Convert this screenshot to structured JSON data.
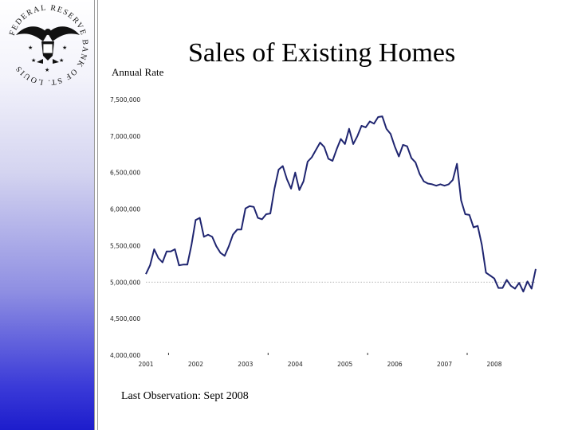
{
  "seal": {
    "ring_text": "FEDERAL RESERVE BANK OF ST. LOUIS",
    "icon": "eagle-seal-icon"
  },
  "header": {
    "title": "Sales of Existing Homes",
    "subtitle": "Annual Rate"
  },
  "footer": {
    "note": "Last Observation: Sept 2008"
  },
  "colors": {
    "line": "#1f2570",
    "band_top": "#ffffff",
    "band_bottom": "#1d1dcc"
  },
  "chart_data": {
    "type": "line",
    "title": "Sales of Existing Homes",
    "ylabel": "Annual Rate",
    "xlabel": "",
    "ylim": [
      4000000,
      7500000
    ],
    "xlim": [
      2001.0,
      2008.833
    ],
    "yticks": [
      4000000,
      4500000,
      5000000,
      5500000,
      6000000,
      6500000,
      7000000,
      7500000
    ],
    "ytick_labels": [
      "4,000,000",
      "4,500,000",
      "5,000,000",
      "5,500,000",
      "6,000,000",
      "6,500,000",
      "7,000,000",
      "7,500,000"
    ],
    "xticks": [
      2001,
      2002,
      2003,
      2004,
      2005,
      2006,
      2007,
      2008
    ],
    "xtick_labels": [
      "2001",
      "2002",
      "2003",
      "2004",
      "2005",
      "2006",
      "2007",
      "2008"
    ],
    "reference_line": 5000000,
    "series": [
      {
        "name": "Sales of Existing Homes",
        "start": 2001.0,
        "step": 0.0833333,
        "values": [
          5110000,
          5230000,
          5450000,
          5330000,
          5270000,
          5420000,
          5420000,
          5450000,
          5230000,
          5240000,
          5240000,
          5510000,
          5850000,
          5880000,
          5620000,
          5650000,
          5620000,
          5490000,
          5400000,
          5360000,
          5490000,
          5650000,
          5720000,
          5720000,
          6010000,
          6040000,
          6030000,
          5880000,
          5860000,
          5930000,
          5940000,
          6280000,
          6540000,
          6590000,
          6410000,
          6280000,
          6500000,
          6260000,
          6380000,
          6650000,
          6710000,
          6810000,
          6910000,
          6850000,
          6690000,
          6660000,
          6820000,
          6960000,
          6890000,
          7100000,
          6890000,
          7000000,
          7140000,
          7120000,
          7200000,
          7170000,
          7260000,
          7270000,
          7100000,
          7030000,
          6860000,
          6720000,
          6880000,
          6860000,
          6700000,
          6640000,
          6480000,
          6380000,
          6350000,
          6340000,
          6320000,
          6340000,
          6320000,
          6340000,
          6400000,
          6620000,
          6120000,
          5930000,
          5920000,
          5750000,
          5770000,
          5510000,
          5130000,
          5090000,
          5050000,
          4920000,
          4920000,
          5030000,
          4950000,
          4910000,
          4990000,
          4870000,
          5010000,
          4910000,
          5180000
        ]
      }
    ]
  }
}
